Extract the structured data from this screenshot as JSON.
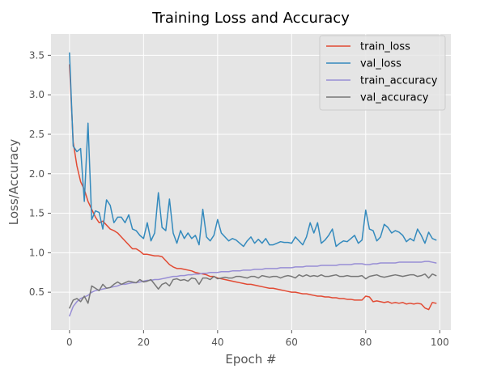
{
  "chart_data": {
    "type": "line",
    "title": "Training Loss and Accuracy",
    "xlabel": "Epoch #",
    "ylabel": "Loss/Accuracy",
    "xlim": [
      -5,
      103
    ],
    "ylim": [
      0.02,
      3.77
    ],
    "xticks": [
      0,
      20,
      40,
      60,
      80,
      100
    ],
    "yticks": [
      0.5,
      1.0,
      1.5,
      2.0,
      2.5,
      3.0,
      3.5
    ],
    "xtick_labels": [
      "0",
      "20",
      "40",
      "60",
      "80",
      "100"
    ],
    "ytick_labels": [
      "0.5",
      "1.0",
      "1.5",
      "2.0",
      "2.5",
      "3.0",
      "3.5"
    ],
    "grid": true,
    "legend_position": "top-right",
    "style": "ggplot",
    "series": [
      {
        "name": "train_loss",
        "color": "#E24A33",
        "values": [
          3.38,
          2.4,
          2.1,
          1.9,
          1.8,
          1.65,
          1.55,
          1.45,
          1.38,
          1.4,
          1.35,
          1.3,
          1.28,
          1.25,
          1.2,
          1.15,
          1.1,
          1.05,
          1.05,
          1.02,
          0.98,
          0.98,
          0.97,
          0.96,
          0.96,
          0.95,
          0.9,
          0.85,
          0.82,
          0.8,
          0.8,
          0.79,
          0.78,
          0.77,
          0.75,
          0.74,
          0.73,
          0.72,
          0.7,
          0.7,
          0.68,
          0.67,
          0.66,
          0.65,
          0.64,
          0.63,
          0.62,
          0.61,
          0.6,
          0.6,
          0.59,
          0.58,
          0.57,
          0.56,
          0.55,
          0.55,
          0.54,
          0.53,
          0.52,
          0.51,
          0.5,
          0.5,
          0.49,
          0.48,
          0.48,
          0.47,
          0.46,
          0.45,
          0.45,
          0.44,
          0.44,
          0.43,
          0.43,
          0.42,
          0.42,
          0.41,
          0.41,
          0.4,
          0.4,
          0.4,
          0.45,
          0.44,
          0.38,
          0.39,
          0.38,
          0.37,
          0.38,
          0.36,
          0.37,
          0.36,
          0.37,
          0.35,
          0.36,
          0.35,
          0.36,
          0.35,
          0.3,
          0.28,
          0.37,
          0.36
        ]
      },
      {
        "name": "val_loss",
        "color": "#348ABD",
        "values": [
          3.53,
          2.35,
          2.28,
          2.32,
          1.65,
          2.64,
          1.42,
          1.53,
          1.51,
          1.3,
          1.67,
          1.6,
          1.38,
          1.45,
          1.45,
          1.38,
          1.48,
          1.3,
          1.28,
          1.22,
          1.18,
          1.38,
          1.15,
          1.25,
          1.76,
          1.32,
          1.28,
          1.68,
          1.25,
          1.12,
          1.28,
          1.18,
          1.25,
          1.18,
          1.22,
          1.1,
          1.55,
          1.2,
          1.15,
          1.22,
          1.42,
          1.25,
          1.2,
          1.15,
          1.18,
          1.16,
          1.12,
          1.08,
          1.15,
          1.2,
          1.12,
          1.17,
          1.12,
          1.18,
          1.1,
          1.1,
          1.12,
          1.14,
          1.13,
          1.13,
          1.12,
          1.2,
          1.15,
          1.1,
          1.2,
          1.38,
          1.25,
          1.38,
          1.12,
          1.16,
          1.22,
          1.3,
          1.08,
          1.12,
          1.15,
          1.14,
          1.18,
          1.22,
          1.12,
          1.16,
          1.54,
          1.3,
          1.28,
          1.15,
          1.2,
          1.36,
          1.32,
          1.25,
          1.28,
          1.26,
          1.22,
          1.14,
          1.18,
          1.15,
          1.3,
          1.22,
          1.12,
          1.26,
          1.18,
          1.16
        ]
      },
      {
        "name": "train_accuracy",
        "color": "#988ED5",
        "values": [
          0.2,
          0.32,
          0.38,
          0.42,
          0.44,
          0.46,
          0.5,
          0.52,
          0.53,
          0.54,
          0.55,
          0.56,
          0.57,
          0.58,
          0.6,
          0.6,
          0.61,
          0.62,
          0.62,
          0.63,
          0.64,
          0.65,
          0.65,
          0.66,
          0.66,
          0.67,
          0.68,
          0.69,
          0.7,
          0.7,
          0.71,
          0.71,
          0.72,
          0.72,
          0.73,
          0.73,
          0.74,
          0.74,
          0.75,
          0.75,
          0.75,
          0.76,
          0.76,
          0.76,
          0.77,
          0.77,
          0.77,
          0.78,
          0.78,
          0.78,
          0.79,
          0.79,
          0.79,
          0.8,
          0.8,
          0.8,
          0.8,
          0.81,
          0.81,
          0.81,
          0.81,
          0.82,
          0.82,
          0.82,
          0.83,
          0.83,
          0.83,
          0.83,
          0.84,
          0.84,
          0.84,
          0.84,
          0.84,
          0.85,
          0.85,
          0.85,
          0.85,
          0.86,
          0.86,
          0.86,
          0.85,
          0.85,
          0.86,
          0.86,
          0.87,
          0.87,
          0.87,
          0.87,
          0.87,
          0.88,
          0.88,
          0.88,
          0.88,
          0.88,
          0.88,
          0.88,
          0.89,
          0.89,
          0.88,
          0.87
        ]
      },
      {
        "name": "val_accuracy",
        "color": "#777777",
        "values": [
          0.3,
          0.4,
          0.42,
          0.38,
          0.45,
          0.36,
          0.58,
          0.55,
          0.52,
          0.6,
          0.55,
          0.56,
          0.6,
          0.63,
          0.6,
          0.62,
          0.64,
          0.63,
          0.62,
          0.66,
          0.63,
          0.64,
          0.66,
          0.6,
          0.54,
          0.6,
          0.62,
          0.58,
          0.66,
          0.67,
          0.65,
          0.66,
          0.64,
          0.68,
          0.67,
          0.6,
          0.68,
          0.68,
          0.66,
          0.7,
          0.67,
          0.68,
          0.69,
          0.68,
          0.68,
          0.7,
          0.7,
          0.69,
          0.68,
          0.7,
          0.7,
          0.68,
          0.71,
          0.7,
          0.69,
          0.7,
          0.7,
          0.68,
          0.7,
          0.71,
          0.7,
          0.68,
          0.72,
          0.7,
          0.72,
          0.7,
          0.71,
          0.7,
          0.72,
          0.7,
          0.7,
          0.71,
          0.72,
          0.7,
          0.7,
          0.71,
          0.7,
          0.7,
          0.7,
          0.71,
          0.67,
          0.7,
          0.71,
          0.72,
          0.7,
          0.69,
          0.7,
          0.71,
          0.72,
          0.71,
          0.7,
          0.71,
          0.72,
          0.72,
          0.7,
          0.71,
          0.73,
          0.68,
          0.73,
          0.71
        ]
      }
    ]
  }
}
